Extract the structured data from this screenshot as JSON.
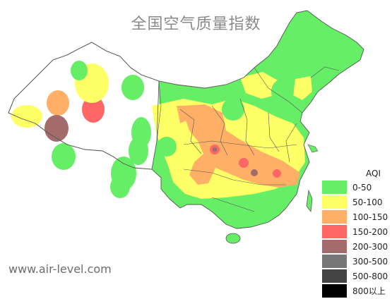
{
  "title": "全国空气质量指数",
  "watermark": "www.air-level.com",
  "legend": {
    "title": "AQI",
    "items": [
      {
        "label": "0-50",
        "color": "#66ee66"
      },
      {
        "label": "50-100",
        "color": "#ffff66"
      },
      {
        "label": "100-150",
        "color": "#ffb066"
      },
      {
        "label": "150-200",
        "color": "#ff6666"
      },
      {
        "label": "200-300",
        "color": "#a36b6b"
      },
      {
        "label": "300-500",
        "color": "#777777"
      },
      {
        "label": "500-800",
        "color": "#444444"
      },
      {
        "label": "800以上",
        "color": "#000000"
      }
    ]
  },
  "map": {
    "region": "China",
    "base_color": "#66ee66",
    "boundary_color": "#555555"
  }
}
